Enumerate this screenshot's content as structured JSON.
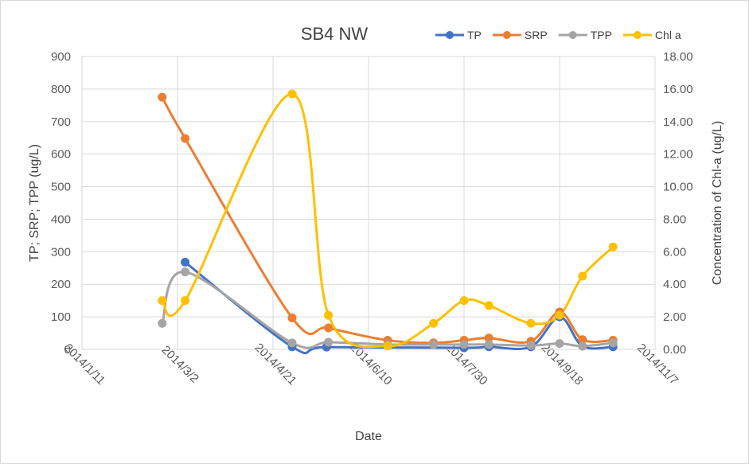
{
  "chart_data": {
    "type": "line",
    "title": "SB4 NW",
    "xlabel": "Date",
    "ylabel_left": "TP; SRP; TPP (ug/L)",
    "ylabel_right": "Concentration of Chl-a (ug/L)",
    "x_ticks": [
      "2014/1/11",
      "2014/3/2",
      "2014/4/21",
      "2014/6/10",
      "2014/7/30",
      "2014/9/18",
      "2014/11/7"
    ],
    "xlim": [
      "2014/1/11",
      "2014/11/7"
    ],
    "ylim_left": [
      0,
      900
    ],
    "ylim_right": [
      0,
      18
    ],
    "y_ticks_left": [
      "0",
      "100",
      "200",
      "300",
      "400",
      "500",
      "600",
      "700",
      "800",
      "900"
    ],
    "y_ticks_right": [
      "0.00",
      "2.00",
      "4.00",
      "6.00",
      "8.00",
      "10.00",
      "12.00",
      "14.00",
      "16.00",
      "18.00"
    ],
    "grid": true,
    "legend_position": "top-right",
    "series": [
      {
        "name": "TP",
        "axis": "left",
        "color": "#4472c4",
        "points": [
          {
            "x": "2014/3/6",
            "y": 268
          },
          {
            "x": "2014/5/1",
            "y": 8
          },
          {
            "x": "2014/5/19",
            "y": 7
          },
          {
            "x": "2014/7/30",
            "y": 5
          },
          {
            "x": "2014/8/12",
            "y": 8
          },
          {
            "x": "2014/9/3",
            "y": 8
          },
          {
            "x": "2014/9/18",
            "y": 100
          },
          {
            "x": "2014/9/30",
            "y": 10
          },
          {
            "x": "2014/10/16",
            "y": 8
          }
        ]
      },
      {
        "name": "SRP",
        "axis": "left",
        "color": "#ed7d31",
        "points": [
          {
            "x": "2014/2/22",
            "y": 775
          },
          {
            "x": "2014/3/6",
            "y": 648
          },
          {
            "x": "2014/5/1",
            "y": 97
          },
          {
            "x": "2014/5/20",
            "y": 66
          },
          {
            "x": "2014/6/20",
            "y": 28
          },
          {
            "x": "2014/7/14",
            "y": 20
          },
          {
            "x": "2014/7/30",
            "y": 28
          },
          {
            "x": "2014/8/12",
            "y": 35
          },
          {
            "x": "2014/9/3",
            "y": 25
          },
          {
            "x": "2014/9/18",
            "y": 115
          },
          {
            "x": "2014/9/30",
            "y": 30
          },
          {
            "x": "2014/10/16",
            "y": 28
          }
        ]
      },
      {
        "name": "TPP",
        "axis": "left",
        "color": "#a5a5a5",
        "points": [
          {
            "x": "2014/2/22",
            "y": 80
          },
          {
            "x": "2014/3/6",
            "y": 238
          },
          {
            "x": "2014/5/1",
            "y": 20
          },
          {
            "x": "2014/5/20",
            "y": 22
          },
          {
            "x": "2014/6/20",
            "y": 15
          },
          {
            "x": "2014/7/14",
            "y": 15
          },
          {
            "x": "2014/7/30",
            "y": 15
          },
          {
            "x": "2014/8/12",
            "y": 15
          },
          {
            "x": "2014/9/3",
            "y": 12
          },
          {
            "x": "2014/9/18",
            "y": 18
          },
          {
            "x": "2014/9/30",
            "y": 10
          },
          {
            "x": "2014/10/16",
            "y": 20
          }
        ]
      },
      {
        "name": "Chl a",
        "axis": "right",
        "color": "#ffc000",
        "points": [
          {
            "x": "2014/2/22",
            "y": 3.0
          },
          {
            "x": "2014/3/6",
            "y": 3.0
          },
          {
            "x": "2014/5/1",
            "y": 15.7
          },
          {
            "x": "2014/5/20",
            "y": 2.1
          },
          {
            "x": "2014/6/20",
            "y": 0.2
          },
          {
            "x": "2014/7/14",
            "y": 1.6
          },
          {
            "x": "2014/7/30",
            "y": 3.0
          },
          {
            "x": "2014/8/12",
            "y": 2.7
          },
          {
            "x": "2014/9/3",
            "y": 1.6
          },
          {
            "x": "2014/9/18",
            "y": 2.1
          },
          {
            "x": "2014/9/30",
            "y": 4.5
          },
          {
            "x": "2014/10/16",
            "y": 6.3
          }
        ]
      }
    ]
  }
}
